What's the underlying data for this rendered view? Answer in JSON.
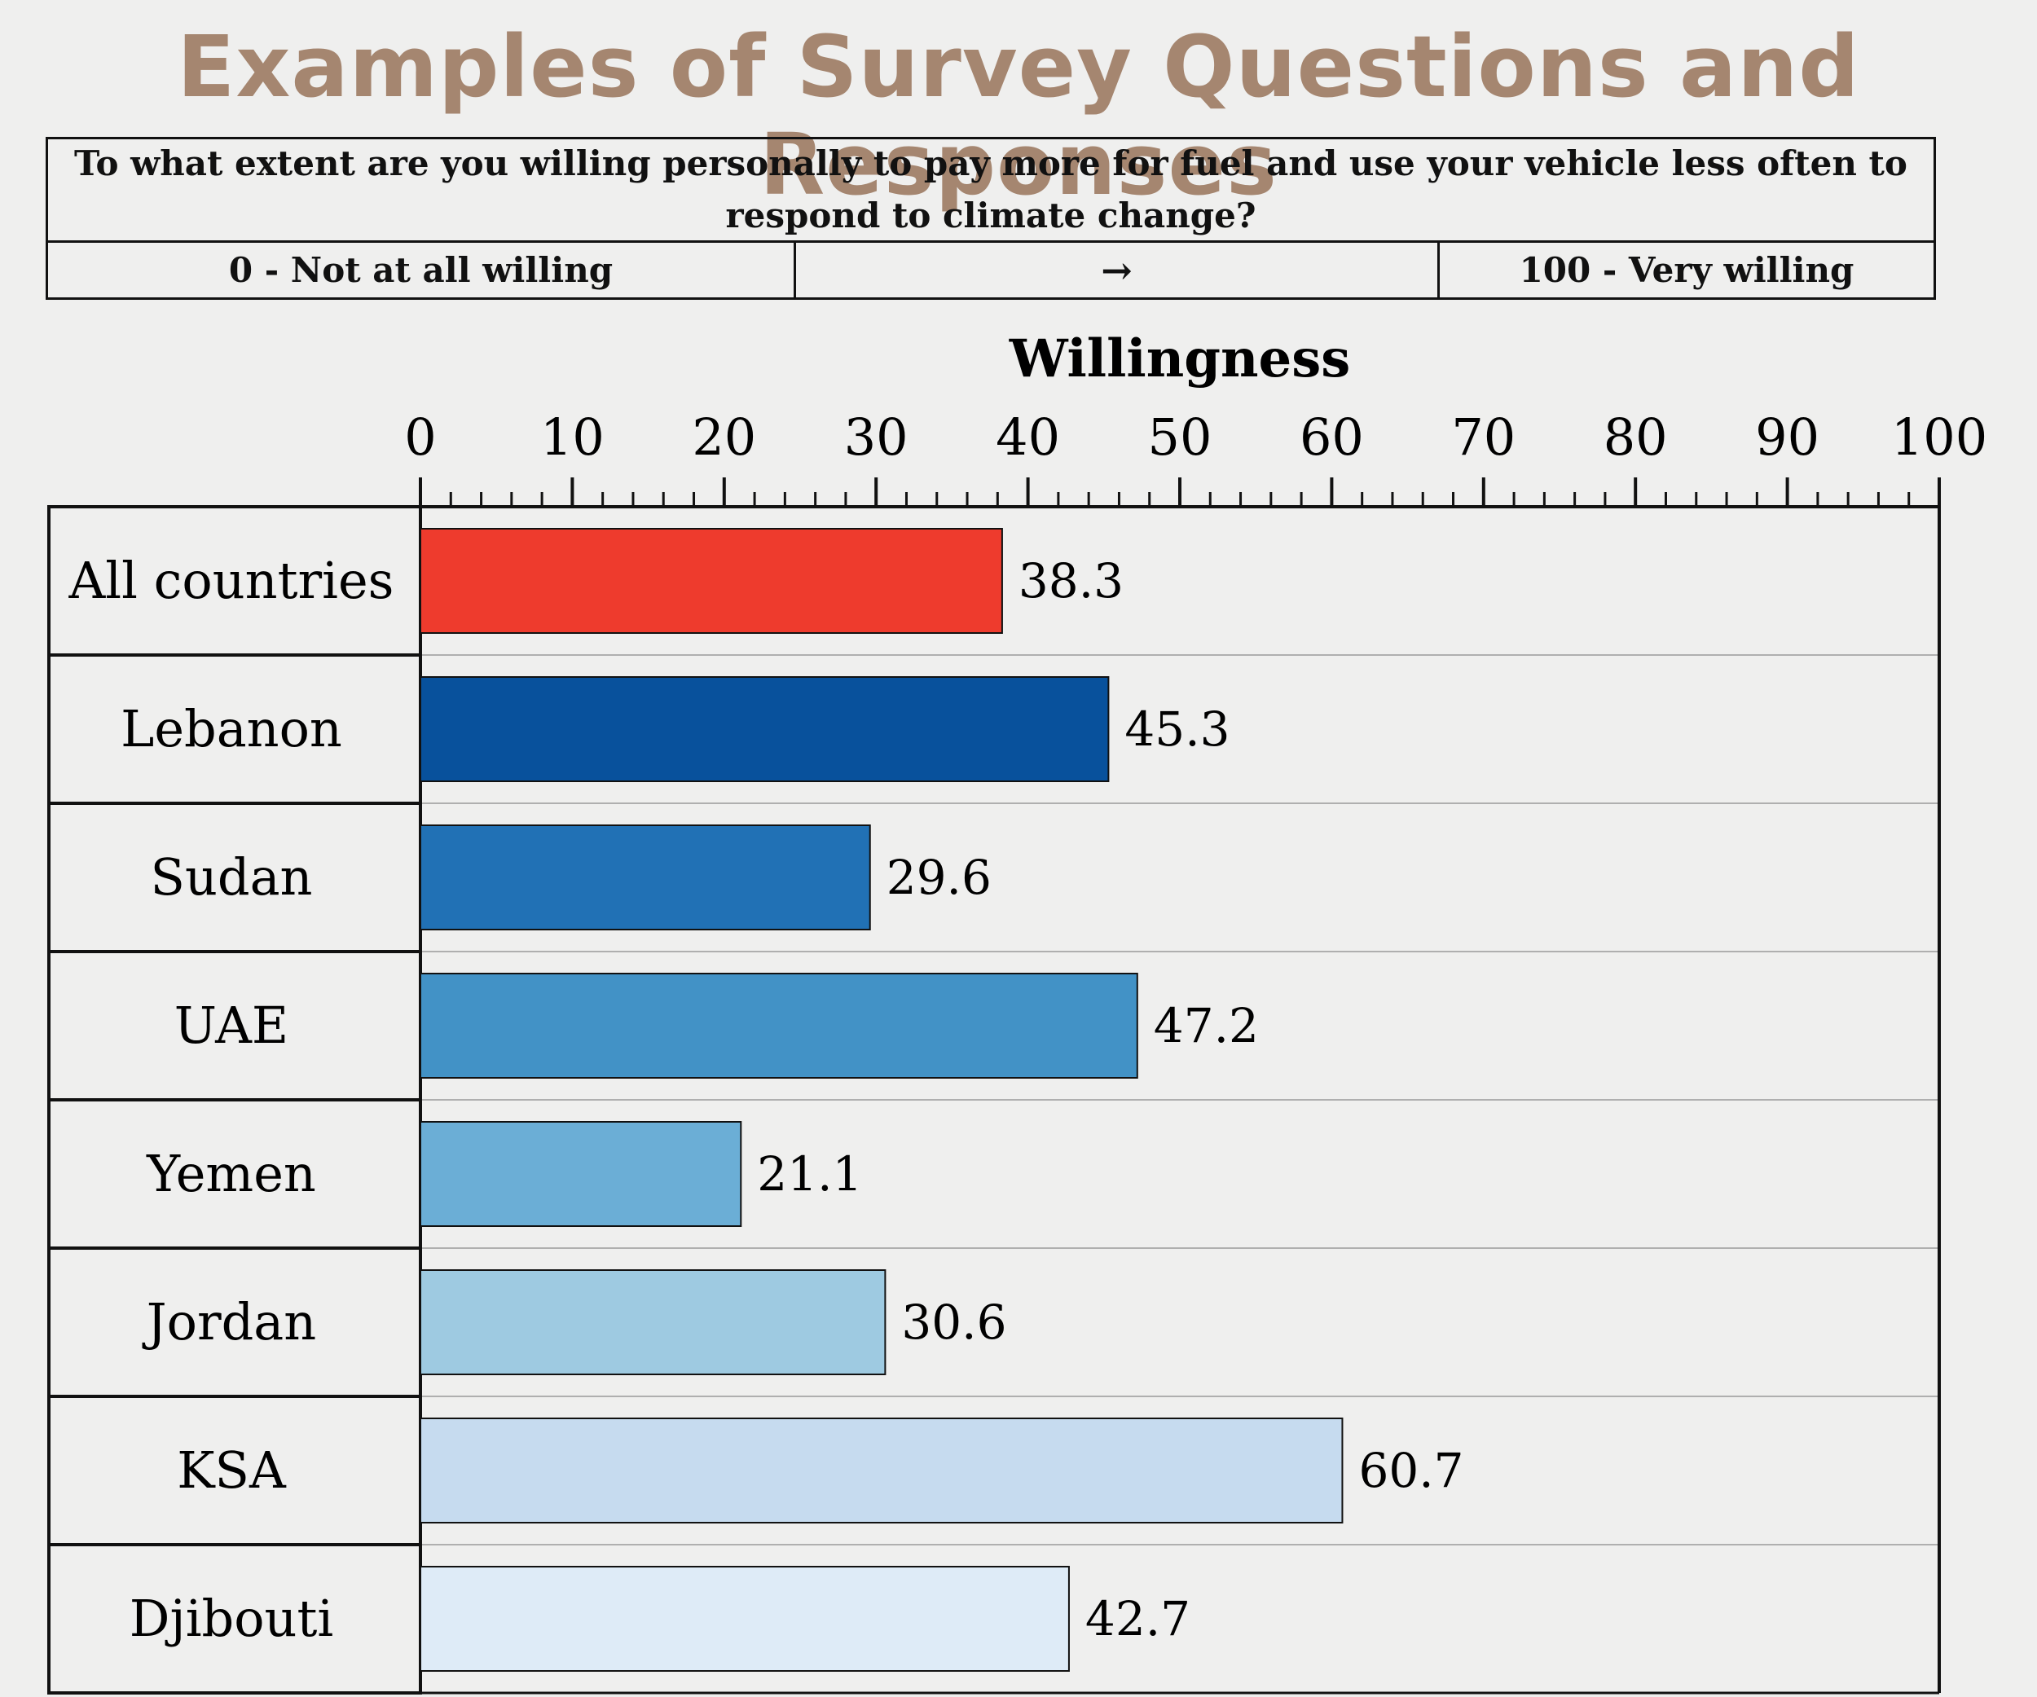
{
  "page": {
    "title": "Examples of Survey Questions and Responses"
  },
  "question": {
    "text": "To what extent are you willing personally to pay more for fuel and use your vehicle less often to respond to climate change?",
    "scale_low": "0 - Not at all willing",
    "scale_arrow": "→",
    "scale_high": "100 - Very willing"
  },
  "colors": {
    "background": "#efefee",
    "title": "#a58670",
    "bars": [
      "#ee3b2d",
      "#08519c",
      "#2171b5",
      "#4292c6",
      "#6baed6",
      "#9ecae1",
      "#c6dbef",
      "#deebf7"
    ]
  },
  "chart_data": {
    "type": "bar",
    "orientation": "horizontal",
    "title": "",
    "xlabel": "Willingness",
    "ylabel": "",
    "xlim": [
      0,
      100
    ],
    "x_ticks": [
      0,
      10,
      20,
      30,
      40,
      50,
      60,
      70,
      80,
      90,
      100
    ],
    "axis_position": "top",
    "categories": [
      "All countries",
      "Lebanon",
      "Sudan",
      "UAE",
      "Yemen",
      "Jordan",
      "KSA",
      "Djibouti"
    ],
    "values": [
      38.3,
      45.3,
      29.6,
      47.2,
      21.1,
      30.6,
      60.7,
      42.7
    ],
    "value_labels": [
      "38.3",
      "45.3",
      "29.6",
      "47.2",
      "21.1",
      "30.6",
      "60.7",
      "42.7"
    ]
  }
}
